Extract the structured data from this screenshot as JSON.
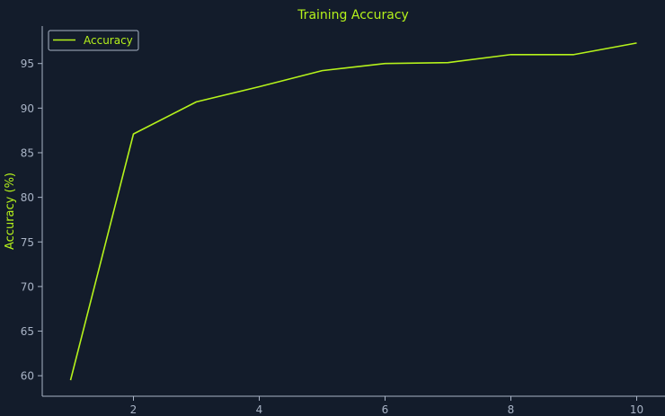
{
  "chart_data": {
    "type": "line",
    "title": "Training Accuracy",
    "xlabel": "",
    "ylabel": "Accuracy (%)",
    "x": [
      1,
      2,
      3,
      4,
      5,
      6,
      7,
      8,
      9,
      10
    ],
    "series": [
      {
        "name": "Accuracy",
        "color": "#b5f21b",
        "values": [
          59.5,
          87.1,
          90.7,
          92.4,
          94.2,
          95.0,
          95.1,
          96.0,
          96.0,
          97.3
        ]
      }
    ],
    "xlim": [
      0.55,
      10.45
    ],
    "ylim": [
      57.7,
      99.2
    ],
    "xticks": [
      2,
      4,
      6,
      8,
      10
    ],
    "yticks": [
      60,
      65,
      70,
      75,
      80,
      85,
      90,
      95
    ],
    "grid": false,
    "legend_position": "top-left",
    "colors": {
      "background": "#131c2b",
      "axis": "#a9b4c6",
      "accent": "#b5f21b"
    }
  }
}
